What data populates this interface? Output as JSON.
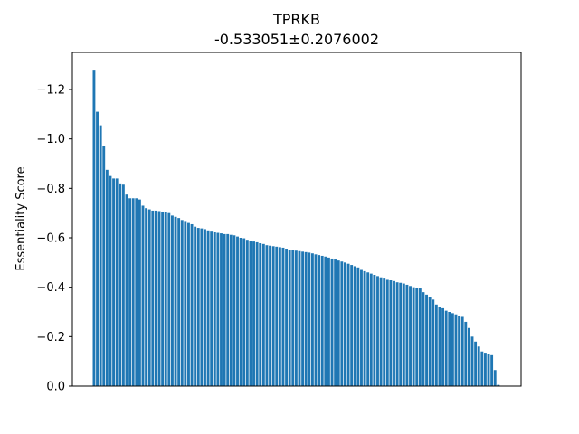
{
  "chart_data": {
    "type": "bar",
    "title": "TPRKB",
    "subtitle": "-0.533051±0.2076002",
    "xlabel": "",
    "ylabel": "Essentiality Score",
    "ylim": [
      0,
      -1.35
    ],
    "y_inverted": true,
    "yticks": [
      0,
      -0.2,
      -0.4,
      -0.6,
      -0.8,
      -1.0,
      -1.2
    ],
    "ytick_labels": [
      "0.0",
      "−0.2",
      "−0.4",
      "−0.6",
      "−0.8",
      "−1.0",
      "−1.2"
    ],
    "grid": false,
    "bar_color": "#1f77b4",
    "values": [
      -1.28,
      -1.11,
      -1.055,
      -0.97,
      -0.875,
      -0.85,
      -0.84,
      -0.84,
      -0.82,
      -0.815,
      -0.775,
      -0.76,
      -0.76,
      -0.76,
      -0.755,
      -0.73,
      -0.72,
      -0.715,
      -0.71,
      -0.71,
      -0.708,
      -0.705,
      -0.703,
      -0.7,
      -0.69,
      -0.685,
      -0.68,
      -0.672,
      -0.668,
      -0.66,
      -0.655,
      -0.645,
      -0.64,
      -0.638,
      -0.635,
      -0.63,
      -0.625,
      -0.622,
      -0.62,
      -0.618,
      -0.615,
      -0.615,
      -0.612,
      -0.61,
      -0.605,
      -0.6,
      -0.598,
      -0.592,
      -0.588,
      -0.585,
      -0.582,
      -0.578,
      -0.575,
      -0.57,
      -0.568,
      -0.566,
      -0.564,
      -0.562,
      -0.56,
      -0.556,
      -0.552,
      -0.55,
      -0.548,
      -0.546,
      -0.544,
      -0.542,
      -0.54,
      -0.537,
      -0.533,
      -0.53,
      -0.527,
      -0.524,
      -0.52,
      -0.516,
      -0.512,
      -0.508,
      -0.504,
      -0.5,
      -0.495,
      -0.49,
      -0.485,
      -0.48,
      -0.47,
      -0.465,
      -0.46,
      -0.455,
      -0.45,
      -0.445,
      -0.44,
      -0.435,
      -0.43,
      -0.428,
      -0.425,
      -0.42,
      -0.418,
      -0.415,
      -0.41,
      -0.405,
      -0.4,
      -0.398,
      -0.395,
      -0.38,
      -0.37,
      -0.36,
      -0.35,
      -0.33,
      -0.32,
      -0.315,
      -0.305,
      -0.3,
      -0.295,
      -0.29,
      -0.285,
      -0.28,
      -0.26,
      -0.235,
      -0.2,
      -0.18,
      -0.16,
      -0.14,
      -0.135,
      -0.13,
      -0.125,
      -0.065,
      -0.005
    ]
  }
}
